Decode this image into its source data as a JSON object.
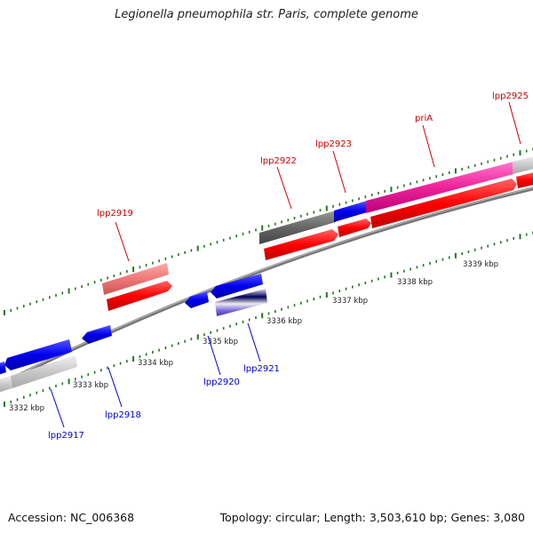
{
  "title": "Legionella pneumophila str. Paris, complete genome",
  "footer": {
    "accession": "Accession: NC_006368",
    "summary": "Topology: circular; Length: 3,503,610 bp; Genes: 3,080"
  },
  "colors": {
    "forward_label": "#cc0000",
    "reverse_label": "#0000cc",
    "cds_red": "#ff0000",
    "cds_pink": "#ee6688",
    "cds_blue": "#0000ee",
    "backbone": "#888888",
    "tick": "#227722"
  },
  "genes": {
    "lpp2919": "lpp2919",
    "lpp2922": "lpp2922",
    "lpp2923": "lpp2923",
    "priA": "priA",
    "lpp2925": "lpp2925",
    "lpp2917": "lpp2917",
    "lpp2918": "lpp2918",
    "lpp2920": "lpp2920",
    "lpp2921": "lpp2921"
  },
  "kbp_labels": {
    "k3332": "3332 kbp",
    "k3333": "3333 kbp",
    "k3334": "3334 kbp",
    "k3335": "3335 kbp",
    "k3336": "3336 kbp",
    "k3337": "3337 kbp",
    "k3338": "3338 kbp",
    "k3339": "3339 kbp"
  }
}
